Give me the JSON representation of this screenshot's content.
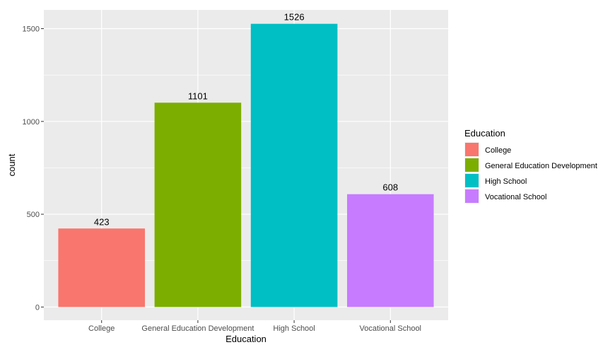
{
  "chart_data": {
    "type": "bar",
    "categories": [
      "College",
      "General Education Development",
      "High School",
      "Vocational School"
    ],
    "values": [
      423,
      1101,
      1526,
      608
    ],
    "colors": [
      "#F8766D",
      "#7CAE00",
      "#00BFC4",
      "#C77CFF"
    ],
    "xlabel": "Education",
    "ylabel": "count",
    "ylim": [
      -71,
      1601
    ],
    "yticks": [
      0,
      500,
      1000,
      1500
    ],
    "grid": true,
    "panel_background": "#EBEBEB",
    "gridline_color": "#FFFFFF",
    "legend": {
      "title": "Education",
      "position": "right",
      "entries": [
        "College",
        "General Education Development",
        "High School",
        "Vocational School"
      ]
    }
  }
}
